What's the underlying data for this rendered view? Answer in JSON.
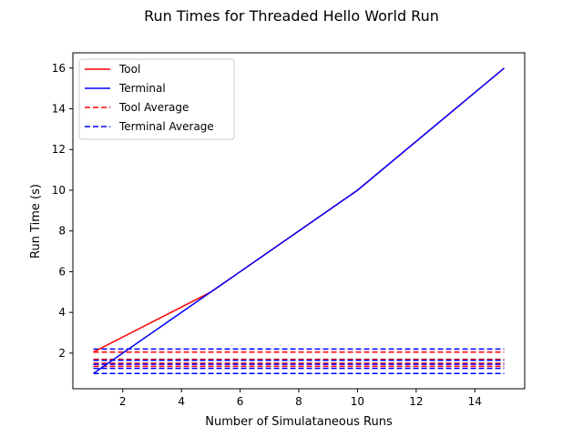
{
  "chart_data": {
    "type": "line",
    "title": "Run Times for Threaded Hello World Run",
    "xlabel": "Number of Simulataneous Runs",
    "ylabel": "Run Time (s)",
    "xlim": [
      0.3,
      15.7
    ],
    "ylim": [
      0.25,
      16.75
    ],
    "xticks": [
      2,
      4,
      6,
      8,
      10,
      12,
      14
    ],
    "yticks": [
      2,
      4,
      6,
      8,
      10,
      12,
      14,
      16
    ],
    "grid": false,
    "legend_position": "top-left",
    "series": [
      {
        "name": "Tool",
        "color": "#ff0000",
        "style": "solid",
        "x": [
          1,
          5,
          10,
          15
        ],
        "y": [
          2.05,
          5.0,
          10.0,
          16.0
        ]
      },
      {
        "name": "Terminal",
        "color": "#0000ff",
        "style": "solid",
        "x": [
          1,
          5,
          10,
          15
        ],
        "y": [
          1.0,
          5.0,
          10.0,
          16.0
        ]
      }
    ],
    "averages": [
      {
        "name": "Tool Average",
        "color": "#ff0000",
        "style": "dashed",
        "x": [
          1,
          15
        ],
        "levels": [
          2.05,
          1.7,
          1.5,
          1.35
        ]
      },
      {
        "name": "Terminal Average",
        "color": "#0000ff",
        "style": "dashed",
        "x": [
          1,
          15
        ],
        "levels": [
          2.2,
          1.65,
          1.45,
          1.25,
          1.0
        ]
      }
    ]
  }
}
